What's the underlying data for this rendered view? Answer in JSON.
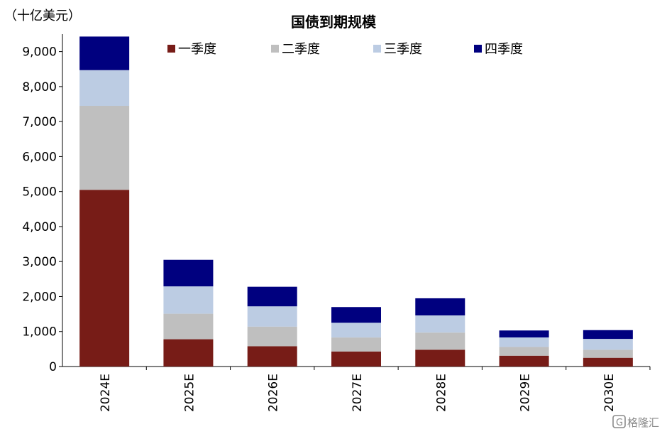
{
  "chart_data": {
    "type": "bar",
    "stacked": true,
    "title": "国债到期规模",
    "unit_label": "（十亿美元）",
    "categories": [
      "2024E",
      "2025E",
      "2026E",
      "2027E",
      "2028E",
      "2029E",
      "2030E"
    ],
    "series": [
      {
        "name": "一季度",
        "color": "#771C17",
        "values": [
          5050,
          780,
          580,
          430,
          480,
          310,
          250
        ]
      },
      {
        "name": "二季度",
        "color": "#BFBFBF",
        "values": [
          2400,
          730,
          560,
          400,
          490,
          250,
          230
        ]
      },
      {
        "name": "三季度",
        "color": "#BCCCE3",
        "values": [
          1020,
          780,
          580,
          420,
          490,
          270,
          310
        ]
      },
      {
        "name": "四季度",
        "color": "#00007F",
        "values": [
          960,
          760,
          560,
          450,
          490,
          200,
          250
        ]
      }
    ],
    "ylim": [
      0,
      9500
    ],
    "yticks": [
      0,
      1000,
      2000,
      3000,
      4000,
      5000,
      6000,
      7000,
      8000,
      9000
    ],
    "ytick_labels": [
      "0",
      "1,000",
      "2,000",
      "3,000",
      "4,000",
      "5,000",
      "6,000",
      "7,000",
      "8,000",
      "9,000"
    ],
    "legend_position": "top",
    "grid": false
  },
  "watermark": {
    "text": "格隆汇"
  }
}
